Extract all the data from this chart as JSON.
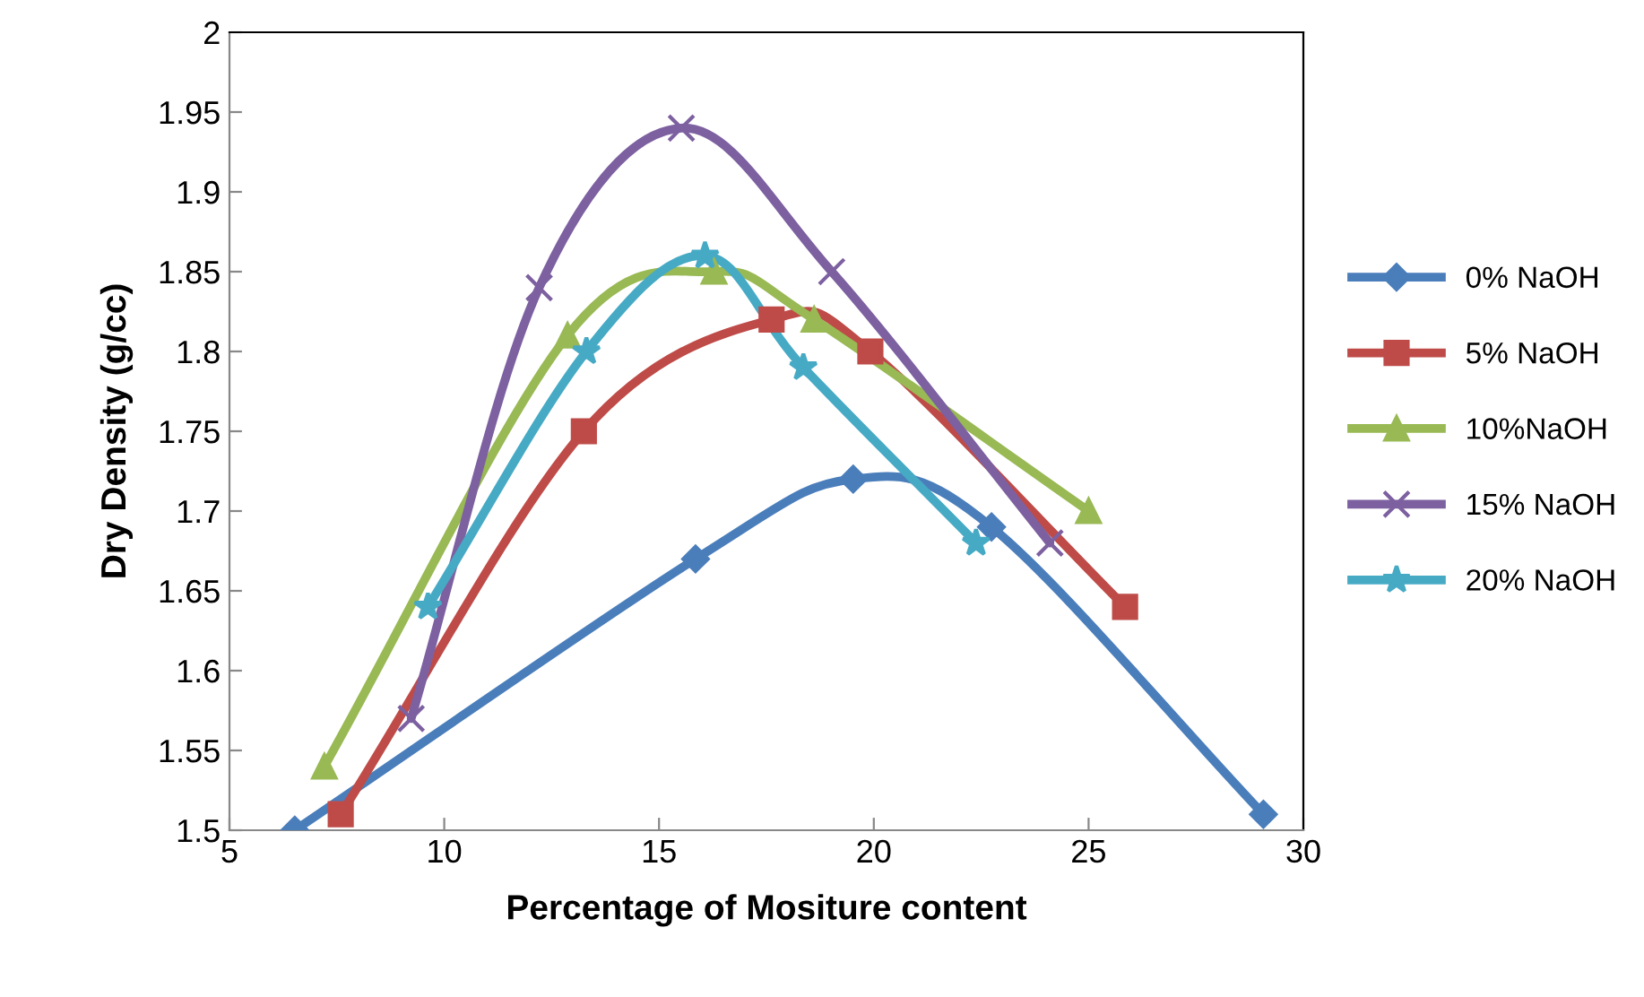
{
  "chart_data": {
    "type": "line",
    "xlabel": "Percentage of Mositure content",
    "ylabel": "Dry Density (g/cc)",
    "xlim": [
      5,
      30
    ],
    "xticks": [
      5,
      10,
      15,
      20,
      25,
      30
    ],
    "ylim": [
      1.5,
      2
    ],
    "yticks": [
      1.5,
      1.55,
      1.6,
      1.65,
      1.7,
      1.75,
      1.8,
      1.85,
      1.9,
      1.95,
      2
    ],
    "grid": false,
    "legend": "right",
    "line_style": "solid",
    "series": [
      {
        "name": "0% NaOH",
        "color": "#4a7ebb",
        "marker": "diamond",
        "x": [
          6.52,
          15.85,
          19.52,
          22.74,
          29.07
        ],
        "values": [
          1.5,
          1.67,
          1.72,
          1.69,
          1.51
        ]
      },
      {
        "name": "5% NaOH",
        "color": "#be4b48",
        "marker": "square",
        "x": [
          7.59,
          13.25,
          17.62,
          19.92,
          25.85
        ],
        "values": [
          1.51,
          1.75,
          1.82,
          1.8,
          1.64
        ]
      },
      {
        "name": "10%NaOH",
        "color": "#98b954",
        "marker": "triangle",
        "x": [
          7.21,
          12.87,
          16.28,
          18.61,
          25.0
        ],
        "values": [
          1.54,
          1.81,
          1.85,
          1.82,
          1.7
        ]
      },
      {
        "name": "15% NaOH",
        "color": "#7d60a0",
        "marker": "cross",
        "x": [
          9.23,
          12.21,
          15.52,
          19.02,
          24.1
        ],
        "values": [
          1.57,
          1.84,
          1.94,
          1.85,
          1.68
        ]
      },
      {
        "name": "20% NaOH",
        "color": "#46aac5",
        "marker": "star",
        "x": [
          9.62,
          13.31,
          16.07,
          18.36,
          22.38
        ],
        "values": [
          1.64,
          1.8,
          1.86,
          1.79,
          1.68
        ]
      }
    ]
  }
}
